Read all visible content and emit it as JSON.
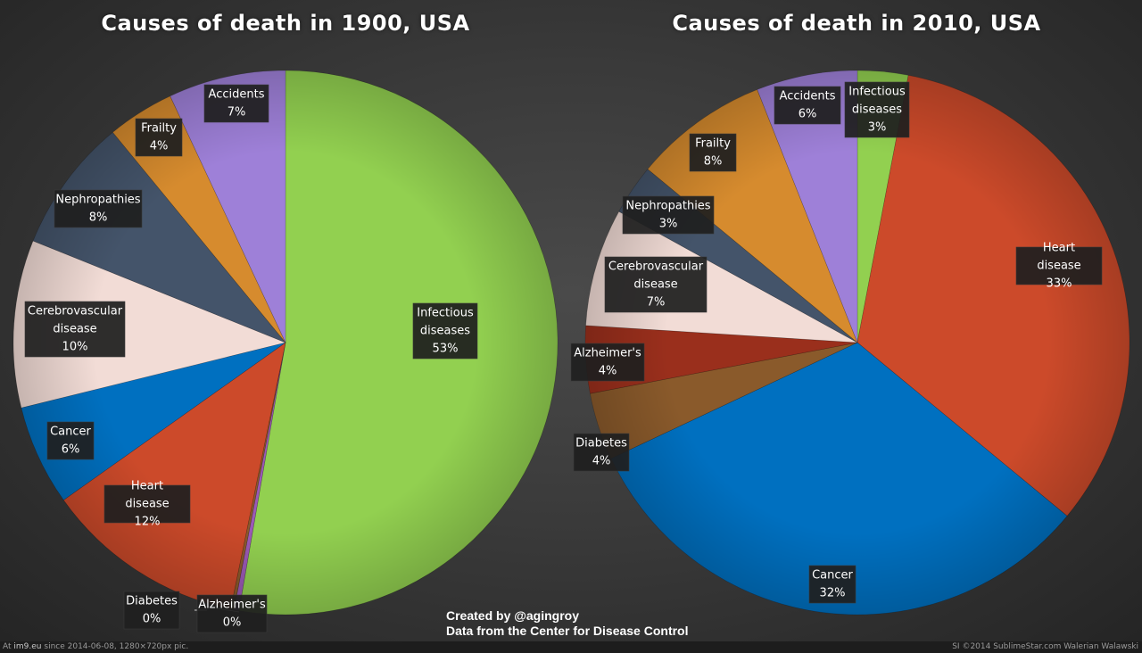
{
  "chart_data": [
    {
      "type": "pie",
      "title": "Causes of death in 1900, USA",
      "start_at": "12 o'clock",
      "direction": "clockwise",
      "slices": [
        {
          "label": "Infectious diseases",
          "value": 53,
          "display": "53%",
          "color": "#92d050"
        },
        {
          "label": "Alzheimer's",
          "value": 0.3,
          "display": "0%",
          "color": "#9b59b6"
        },
        {
          "label": "Diabetes",
          "value": 0.2,
          "display": "0%",
          "color": "#8a5a2b"
        },
        {
          "label": "Heart disease",
          "value": 12,
          "display": "12%",
          "color": "#cc4a2a"
        },
        {
          "label": "Cancer",
          "value": 6,
          "display": "6%",
          "color": "#0070c0"
        },
        {
          "label": "Cerebrovascular disease",
          "value": 10,
          "display": "10%",
          "color": "#f2dcd6"
        },
        {
          "label": "Nephropathies",
          "value": 8,
          "display": "8%",
          "color": "#44546a"
        },
        {
          "label": "Frailty",
          "value": 4,
          "display": "4%",
          "color": "#d68b2e"
        },
        {
          "label": "Accidents",
          "value": 7,
          "display": "7%",
          "color": "#9e80d8"
        }
      ]
    },
    {
      "type": "pie",
      "title": "Causes of death in 2010, USA",
      "start_at": "12 o'clock",
      "direction": "clockwise",
      "slices": [
        {
          "label": "Infectious diseases",
          "value": 3,
          "display": "3%",
          "color": "#92d050"
        },
        {
          "label": "Heart disease",
          "value": 33,
          "display": "33%",
          "color": "#cc4a2a"
        },
        {
          "label": "Cancer",
          "value": 32,
          "display": "32%",
          "color": "#0070c0"
        },
        {
          "label": "Diabetes",
          "value": 4,
          "display": "4%",
          "color": "#8a5a2b"
        },
        {
          "label": "Alzheimer's",
          "value": 4,
          "display": "4%",
          "color": "#9a2f1c"
        },
        {
          "label": "Cerebrovascular disease",
          "value": 7,
          "display": "7%",
          "color": "#f2dcd6"
        },
        {
          "label": "Nephropathies",
          "value": 3,
          "display": "3%",
          "color": "#44546a"
        },
        {
          "label": "Frailty",
          "value": 8,
          "display": "8%",
          "color": "#d68b2e"
        },
        {
          "label": "Accidents",
          "value": 6,
          "display": "6%",
          "color": "#9e80d8"
        }
      ]
    }
  ],
  "credits": {
    "line1": "Created by @agingroy",
    "line2": "Data from the Center for Disease Control"
  },
  "footer": {
    "prefix": "At",
    "site": "im9.eu",
    "left_rest": "since 2014-06-08, 1280×720px pic.",
    "right": "SI ©2014 SublimeStar.com Walerian Walawski"
  }
}
